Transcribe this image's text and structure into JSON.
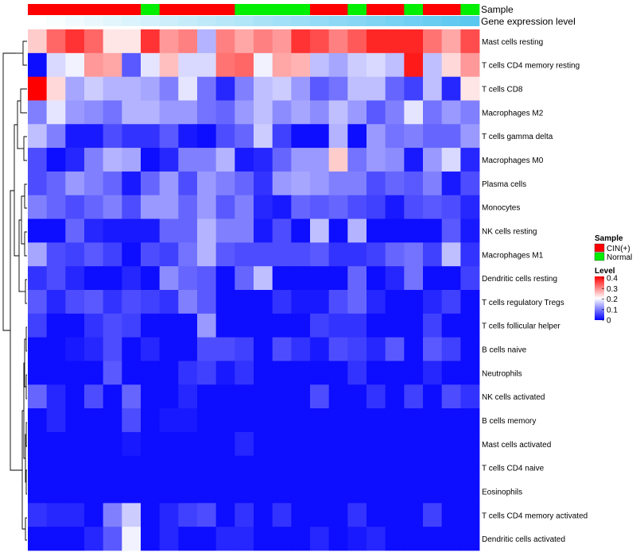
{
  "chart_data": {
    "type": "heatmap",
    "annotations": {
      "sample_label": "Sample",
      "expression_label": "Gene expression level",
      "sample_groups": [
        "CIN(+)",
        "CIN(+)",
        "CIN(+)",
        "CIN(+)",
        "CIN(+)",
        "CIN(+)",
        "Normal",
        "CIN(+)",
        "CIN(+)",
        "CIN(+)",
        "CIN(+)",
        "Normal",
        "Normal",
        "Normal",
        "Normal",
        "CIN(+)",
        "CIN(+)",
        "Normal",
        "CIN(+)",
        "CIN(+)",
        "Normal",
        "CIN(+)",
        "CIN(+)",
        "Normal"
      ],
      "sample_colors": {
        "CIN(+)": "#ff0000",
        "Normal": "#00ee00"
      },
      "expression_gradient": [
        "#ffffff",
        "#5bc8f0"
      ]
    },
    "legend": {
      "sample_title": "Sample",
      "sample_entries": [
        {
          "label": "CIN(+)",
          "color": "#ff0000"
        },
        {
          "label": "Normal",
          "color": "#00ee00"
        }
      ],
      "level_title": "Level",
      "level_ticks": [
        "0.4",
        "0.3",
        "0.2",
        "0.1",
        "0"
      ],
      "level_tick_values": [
        0.4,
        0.3,
        0.2,
        0.1,
        0
      ],
      "placement": "right"
    },
    "color_scale": {
      "min": 0,
      "max": 0.4,
      "low": "#0000ff",
      "mid": "#ffffff",
      "high": "#ff0000",
      "mid_value": 0.2
    },
    "rows": [
      {
        "label": "Mast cells resting",
        "values": [
          0.24,
          0.32,
          0.36,
          0.32,
          0.22,
          0.22,
          0.36,
          0.28,
          0.3,
          0.14,
          0.3,
          0.27,
          0.3,
          0.28,
          0.36,
          0.34,
          0.3,
          0.33,
          0.37,
          0.37,
          0.37,
          0.31,
          0.27,
          0.34
        ]
      },
      {
        "label": "T cells CD4 memory resting",
        "values": [
          0.01,
          0.17,
          0.19,
          0.28,
          0.27,
          0.07,
          0.18,
          0.25,
          0.17,
          0.17,
          0.31,
          0.32,
          0.19,
          0.27,
          0.26,
          0.15,
          0.13,
          0.16,
          0.17,
          0.15,
          0.38,
          0.15,
          0.23,
          0.28
        ]
      },
      {
        "label": "T cells CD8",
        "values": [
          0.4,
          0.23,
          0.13,
          0.16,
          0.14,
          0.14,
          0.13,
          0.1,
          0.18,
          0.09,
          0.03,
          0.1,
          0.15,
          0.16,
          0.12,
          0.07,
          0.09,
          0.15,
          0.15,
          0.08,
          0.05,
          0.15,
          0.03,
          0.22
        ]
      },
      {
        "label": "Macrophages M2",
        "values": [
          0.1,
          0.18,
          0.12,
          0.11,
          0.09,
          0.14,
          0.14,
          0.12,
          0.12,
          0.09,
          0.08,
          0.12,
          0.15,
          0.11,
          0.13,
          0.11,
          0.15,
          0.12,
          0.07,
          0.1,
          0.18,
          0.09,
          0.12,
          0.1
        ]
      },
      {
        "label": "T cells gamma delta",
        "values": [
          0.15,
          0.1,
          0.02,
          0.02,
          0.06,
          0.04,
          0.04,
          0.07,
          0.02,
          0.01,
          0.06,
          0.08,
          0.16,
          0.05,
          0.01,
          0.01,
          0.14,
          0.01,
          0.12,
          0.09,
          0.1,
          0.08,
          0.08,
          0.12
        ]
      },
      {
        "label": "Macrophages M0",
        "values": [
          0.06,
          0.01,
          0.03,
          0.1,
          0.14,
          0.13,
          0.01,
          0.03,
          0.1,
          0.1,
          0.14,
          0.02,
          0.03,
          0.08,
          0.12,
          0.12,
          0.24,
          0.09,
          0.12,
          0.11,
          0.02,
          0.12,
          0.17,
          0.03
        ]
      },
      {
        "label": "Plasma cells",
        "values": [
          0.06,
          0.08,
          0.12,
          0.1,
          0.08,
          0.02,
          0.08,
          0.12,
          0.06,
          0.12,
          0.1,
          0.08,
          0.04,
          0.12,
          0.13,
          0.12,
          0.1,
          0.1,
          0.06,
          0.08,
          0.07,
          0.1,
          0.02,
          0.06
        ]
      },
      {
        "label": "Monocytes",
        "values": [
          0.1,
          0.08,
          0.06,
          0.08,
          0.1,
          0.06,
          0.12,
          0.12,
          0.08,
          0.12,
          0.07,
          0.1,
          0.03,
          0.02,
          0.08,
          0.07,
          0.08,
          0.06,
          0.05,
          0.02,
          0.06,
          0.07,
          0.06,
          0.03
        ]
      },
      {
        "label": "NK cells resting",
        "values": [
          0.01,
          0.01,
          0.08,
          0.03,
          0.02,
          0.02,
          0.02,
          0.08,
          0.08,
          0.14,
          0.1,
          0.1,
          0.02,
          0.06,
          0.01,
          0.15,
          0.01,
          0.14,
          0.01,
          0.01,
          0.01,
          0.01,
          0.07,
          0.02
        ]
      },
      {
        "label": "Macrophages M1",
        "values": [
          0.13,
          0.06,
          0.05,
          0.07,
          0.05,
          0.01,
          0.06,
          0.05,
          0.09,
          0.14,
          0.07,
          0.06,
          0.06,
          0.06,
          0.06,
          0.07,
          0.04,
          0.04,
          0.05,
          0.08,
          0.09,
          0.05,
          0.15,
          0.04
        ]
      },
      {
        "label": "Dendritic cells resting",
        "values": [
          0.04,
          0.06,
          0.03,
          0.01,
          0.01,
          0.03,
          0.01,
          0.11,
          0.08,
          0.07,
          0.01,
          0.08,
          0.15,
          0.01,
          0.01,
          0.01,
          0.01,
          0.08,
          0.01,
          0.03,
          0.09,
          0.01,
          0.01,
          0.05
        ]
      },
      {
        "label": "T cells regulatory  Tregs",
        "values": [
          0.07,
          0.03,
          0.06,
          0.07,
          0.04,
          0.06,
          0.05,
          0.04,
          0.1,
          0.07,
          0.01,
          0.01,
          0.01,
          0.04,
          0.02,
          0.02,
          0.06,
          0.08,
          0.03,
          0.01,
          0.01,
          0.03,
          0.05,
          0.01
        ]
      },
      {
        "label": "T cells follicular helper",
        "values": [
          0.05,
          0.01,
          0.01,
          0.04,
          0.06,
          0.05,
          0.01,
          0.01,
          0.01,
          0.12,
          0.01,
          0.01,
          0.01,
          0.01,
          0.01,
          0.05,
          0.04,
          0.04,
          0.01,
          0.01,
          0.01,
          0.05,
          0.01,
          0.01
        ]
      },
      {
        "label": "B cells naive",
        "values": [
          0.01,
          0.01,
          0.02,
          0.03,
          0.06,
          0.01,
          0.03,
          0.01,
          0.01,
          0.06,
          0.06,
          0.05,
          0.01,
          0.06,
          0.04,
          0.02,
          0.06,
          0.05,
          0.03,
          0.07,
          0.01,
          0.07,
          0.05,
          0.01
        ]
      },
      {
        "label": "Neutrophils",
        "values": [
          0.01,
          0.01,
          0.01,
          0.01,
          0.07,
          0.01,
          0.01,
          0.01,
          0.04,
          0.05,
          0.02,
          0.04,
          0.01,
          0.01,
          0.01,
          0.01,
          0.01,
          0.04,
          0.01,
          0.01,
          0.01,
          0.03,
          0.01,
          0.01
        ]
      },
      {
        "label": "NK cells activated",
        "values": [
          0.08,
          0.03,
          0.01,
          0.06,
          0.01,
          0.08,
          0.01,
          0.01,
          0.03,
          0.01,
          0.01,
          0.01,
          0.01,
          0.01,
          0.01,
          0.06,
          0.01,
          0.01,
          0.04,
          0.01,
          0.05,
          0.01,
          0.06,
          0.04
        ]
      },
      {
        "label": "B cells memory",
        "values": [
          0.01,
          0.03,
          0.01,
          0.01,
          0.01,
          0.06,
          0.01,
          0.02,
          0.02,
          0.01,
          0.01,
          0.01,
          0.01,
          0.01,
          0.01,
          0.01,
          0.01,
          0.01,
          0.01,
          0.01,
          0.01,
          0.01,
          0.01,
          0.01
        ]
      },
      {
        "label": "Mast cells activated",
        "values": [
          0.01,
          0.01,
          0.01,
          0.01,
          0.01,
          0.02,
          0.01,
          0.01,
          0.01,
          0.01,
          0.01,
          0.03,
          0.01,
          0.01,
          0.01,
          0.01,
          0.01,
          0.01,
          0.01,
          0.01,
          0.01,
          0.01,
          0.01,
          0.01
        ]
      },
      {
        "label": "T cells CD4 naive",
        "values": [
          0.01,
          0.01,
          0.01,
          0.01,
          0.01,
          0.01,
          0.01,
          0.01,
          0.01,
          0.01,
          0.01,
          0.01,
          0.01,
          0.01,
          0.01,
          0.01,
          0.01,
          0.01,
          0.01,
          0.01,
          0.01,
          0.01,
          0.01,
          0.01
        ]
      },
      {
        "label": "Eosinophils",
        "values": [
          0.01,
          0.01,
          0.01,
          0.01,
          0.01,
          0.01,
          0.01,
          0.01,
          0.01,
          0.01,
          0.01,
          0.01,
          0.01,
          0.01,
          0.01,
          0.01,
          0.01,
          0.01,
          0.01,
          0.01,
          0.01,
          0.01,
          0.01,
          0.01
        ]
      },
      {
        "label": "T cells CD4 memory activated",
        "values": [
          0.04,
          0.03,
          0.03,
          0.01,
          0.1,
          0.16,
          0.01,
          0.03,
          0.05,
          0.06,
          0.01,
          0.04,
          0.01,
          0.04,
          0.01,
          0.01,
          0.01,
          0.04,
          0.01,
          0.01,
          0.01,
          0.05,
          0.01,
          0.01
        ]
      },
      {
        "label": "Dendritic cells activated",
        "values": [
          0.01,
          0.01,
          0.01,
          0.03,
          0.07,
          0.19,
          0.01,
          0.03,
          0.01,
          0.01,
          0.03,
          0.03,
          0.01,
          0.01,
          0.01,
          0.03,
          0.01,
          0.02,
          0.03,
          0.01,
          0.01,
          0.01,
          0.01,
          0.01
        ]
      }
    ]
  }
}
